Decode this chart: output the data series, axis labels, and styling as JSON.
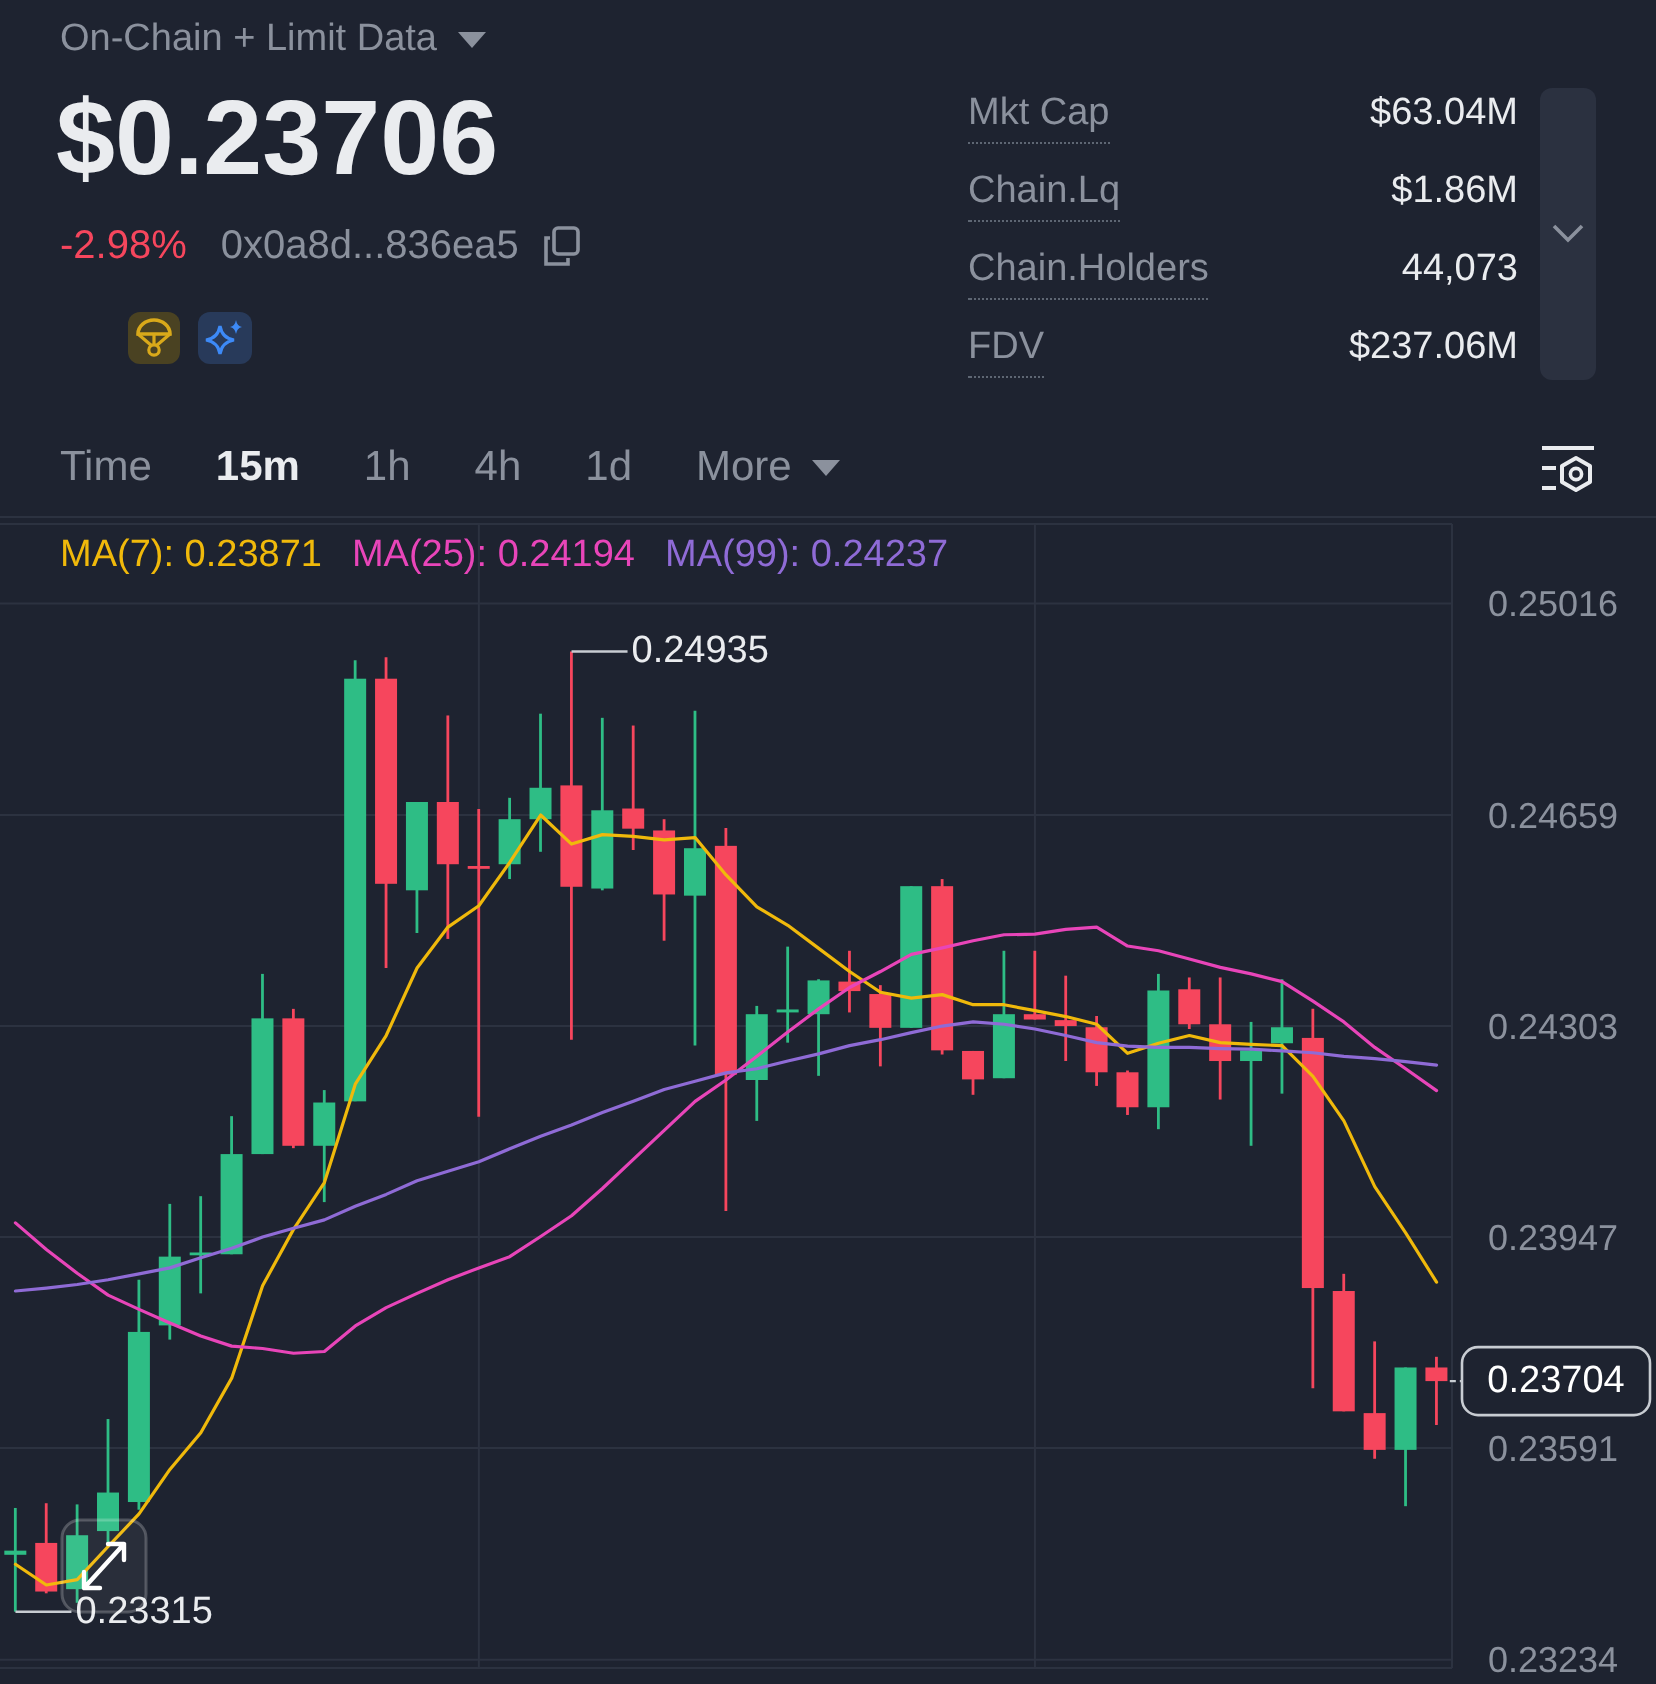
{
  "chart_data": [
    {
      "type": "other",
      "title": "On-Chain + Limit Data",
      "subtitle": "$0.23706",
      "annotations": [
        "-2.98%",
        "0x0a8d...836ea5",
        "Mkt Cap",
        "$63.04M",
        "Chain.Lq",
        "$1.86M",
        "Chain.Holders",
        "44,073",
        "FDV",
        "$237.06M",
        "Time",
        "15m",
        "1h",
        "4h",
        "1d",
        "More"
      ]
    },
    {
      "type": "candlestick",
      "categories": [
        null,
        null,
        null,
        null,
        null,
        null,
        null,
        null,
        null,
        null,
        null,
        null,
        null,
        null,
        null,
        null,
        null,
        null,
        null,
        null,
        null,
        null,
        null,
        null,
        null,
        null,
        null,
        null,
        null,
        null,
        null,
        null,
        null,
        null,
        null,
        null,
        null,
        null,
        null,
        null,
        null,
        null,
        null,
        null,
        null,
        null,
        null
      ],
      "ohlc": [
        [
          0.23411,
          0.2349,
          0.23315,
          0.23418
        ],
        [
          0.23431,
          0.23498,
          0.23346,
          0.23349
        ],
        [
          0.23353,
          0.23496,
          0.2333,
          0.23444
        ],
        [
          0.23451,
          0.2364,
          0.23431,
          0.23516
        ],
        [
          0.235,
          0.23875,
          0.23487,
          0.23787
        ],
        [
          0.23798,
          0.24003,
          0.23774,
          0.23914
        ],
        [
          0.23918,
          0.24016,
          0.23852,
          0.23921
        ],
        [
          0.23918,
          0.24151,
          0.23918,
          0.24087
        ],
        [
          0.24087,
          0.24391,
          0.24087,
          0.24316
        ],
        [
          0.24316,
          0.24332,
          0.24097,
          0.24101
        ],
        [
          0.24101,
          0.24195,
          0.24006,
          0.24174
        ],
        [
          0.24176,
          0.2492,
          0.24176,
          0.24889
        ],
        [
          0.24889,
          0.24925,
          0.24401,
          0.24543
        ],
        [
          0.24532,
          0.24681,
          0.2446,
          0.24681
        ],
        [
          0.24681,
          0.24827,
          0.2445,
          0.24576
        ],
        [
          0.24573,
          0.24669,
          0.2415,
          0.24571
        ],
        [
          0.24576,
          0.24688,
          0.24551,
          0.24652
        ],
        [
          0.24652,
          0.2483,
          0.24597,
          0.24705
        ],
        [
          0.24709,
          0.24935,
          0.2428,
          0.24538
        ],
        [
          0.24535,
          0.24823,
          0.24532,
          0.24667
        ],
        [
          0.2467,
          0.2481,
          0.246,
          0.24636
        ],
        [
          0.24633,
          0.24652,
          0.24447,
          0.24525
        ],
        [
          0.24523,
          0.24835,
          0.2427,
          0.24603
        ],
        [
          0.24607,
          0.24637,
          0.23991,
          0.24221
        ],
        [
          0.24212,
          0.24337,
          0.24143,
          0.24323
        ],
        [
          0.24326,
          0.24437,
          0.24275,
          0.24331
        ],
        [
          0.24323,
          0.24382,
          0.24219,
          0.2438
        ],
        [
          0.24378,
          0.2443,
          0.24326,
          0.24362
        ],
        [
          0.24357,
          0.24372,
          0.24235,
          0.243
        ],
        [
          0.243,
          0.24539,
          0.243,
          0.24539
        ],
        [
          0.24539,
          0.24551,
          0.24255,
          0.24262
        ],
        [
          0.24261,
          0.24261,
          0.24187,
          0.24213
        ],
        [
          0.24215,
          0.2443,
          0.24215,
          0.24323
        ],
        [
          0.24323,
          0.2443,
          0.24314,
          0.24314
        ],
        [
          0.24313,
          0.24388,
          0.24244,
          0.24303
        ],
        [
          0.24301,
          0.2432,
          0.24202,
          0.24225
        ],
        [
          0.24225,
          0.24228,
          0.24153,
          0.24166
        ],
        [
          0.24166,
          0.24391,
          0.24129,
          0.24363
        ],
        [
          0.24365,
          0.24385,
          0.24298,
          0.24306
        ],
        [
          0.24306,
          0.24385,
          0.24179,
          0.24244
        ],
        [
          0.24244,
          0.2431,
          0.24101,
          0.24262
        ],
        [
          0.24274,
          0.24382,
          0.24189,
          0.24301
        ],
        [
          0.24283,
          0.24332,
          0.23692,
          0.23861
        ],
        [
          0.23856,
          0.23885,
          0.23653,
          0.23653
        ],
        [
          0.2365,
          0.23771,
          0.23573,
          0.23588
        ],
        [
          0.23588,
          0.23727,
          0.23493,
          0.23727
        ],
        [
          0.23727,
          0.23745,
          0.2363,
          0.23704
        ]
      ],
      "colors": [
        "#2ebd85",
        "#f6465d",
        "#2ebd85",
        "#2ebd85",
        "#2ebd85",
        "#2ebd85",
        "#2ebd85",
        "#2ebd85",
        "#2ebd85",
        "#f6465d",
        "#2ebd85",
        "#2ebd85",
        "#f6465d",
        "#2ebd85",
        "#f6465d",
        "#f6465d",
        "#2ebd85",
        "#2ebd85",
        "#f6465d",
        "#2ebd85",
        "#f6465d",
        "#f6465d",
        "#2ebd85",
        "#f6465d",
        "#2ebd85",
        "#2ebd85",
        "#2ebd85",
        "#f6465d",
        "#f6465d",
        "#2ebd85",
        "#f6465d",
        "#f6465d",
        "#2ebd85",
        "#f6465d",
        "#f6465d",
        "#f6465d",
        "#f6465d",
        "#2ebd85",
        "#f6465d",
        "#f6465d",
        "#2ebd85",
        "#2ebd85",
        "#f6465d",
        "#f6465d",
        "#f6465d",
        "#2ebd85",
        "#f6465d"
      ],
      "series": [
        {
          "name": "MA(7): 0.23871",
          "type": "line",
          "color": "#f0b90b",
          "values": [
            0.23395,
            0.2336,
            0.23369,
            0.23425,
            0.2348,
            0.23555,
            0.23617,
            0.23709,
            0.23865,
            0.2396,
            0.24039,
            0.24205,
            0.24287,
            0.24401,
            0.2447,
            0.24506,
            0.24579,
            0.24659,
            0.2461,
            0.24626,
            0.24623,
            0.24617,
            0.24621,
            0.24558,
            0.24504,
            0.24473,
            0.24434,
            0.24395,
            0.2436,
            0.2435,
            0.24356,
            0.24339,
            0.24339,
            0.24329,
            0.24319,
            0.24306,
            0.24257,
            0.24274,
            0.24287,
            0.24275,
            0.24272,
            0.2427,
            0.24218,
            0.24143,
            0.24032,
            0.23954,
            0.23871
          ]
        },
        {
          "name": "MA(25): 0.24194",
          "type": "line",
          "color": "#e845b9",
          "values": [
            0.23971,
            0.23926,
            0.23886,
            0.23849,
            0.23825,
            0.23802,
            0.2378,
            0.23763,
            0.23759,
            0.23751,
            0.23754,
            0.23797,
            0.23828,
            0.23852,
            0.23875,
            0.23895,
            0.23914,
            0.23948,
            0.23983,
            0.24029,
            0.24078,
            0.24127,
            0.24176,
            0.24212,
            0.24252,
            0.24293,
            0.24332,
            0.24368,
            0.24395,
            0.24424,
            0.24435,
            0.24447,
            0.24457,
            0.24458,
            0.24466,
            0.2447,
            0.24438,
            0.2443,
            0.24416,
            0.24402,
            0.24391,
            0.24378,
            0.24345,
            0.2431,
            0.24267,
            0.24231,
            0.24194
          ]
        },
        {
          "name": "MA(99): 0.24237",
          "type": "line",
          "color": "#8f6bd6",
          "values": [
            0.23856,
            0.23861,
            0.23867,
            0.23875,
            0.23885,
            0.23895,
            0.23912,
            0.23928,
            0.23947,
            0.23962,
            0.23976,
            0.23999,
            0.24019,
            0.24042,
            0.24058,
            0.24074,
            0.24096,
            0.24117,
            0.24136,
            0.24157,
            0.24176,
            0.24196,
            0.2421,
            0.24224,
            0.24231,
            0.24244,
            0.24256,
            0.2427,
            0.2428,
            0.24292,
            0.24303,
            0.2431,
            0.24306,
            0.24298,
            0.24287,
            0.24275,
            0.24269,
            0.24267,
            0.24267,
            0.24265,
            0.24264,
            0.24261,
            0.24258,
            0.24252,
            0.24248,
            0.24243,
            0.24237
          ]
        }
      ],
      "ylim": [
        0.2322,
        0.2515
      ],
      "yticks": [
        0.25016,
        0.24659,
        0.24303,
        0.23947,
        0.23591,
        0.23234
      ],
      "grid": true,
      "legend": "top left",
      "tick_labels": "y",
      "annotations": [
        "0.24935",
        "0.23315",
        "0.23704"
      ]
    }
  ]
}
